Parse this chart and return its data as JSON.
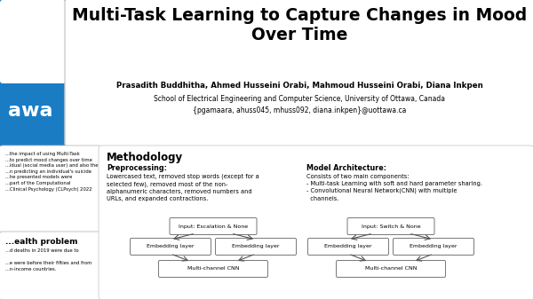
{
  "bg_color": "#1a7dc4",
  "title": "Multi-Task Learning to Capture Changes in Mood\nOver Time",
  "authors": "Prasadith Buddhitha, Ahmed Husseini Orabi, Mahmoud Husseini Orabi, Diana Inkpen",
  "affiliation": "School of Electrical Engineering and Computer Science, University of Ottawa, Canada",
  "email": "{pgamaara, ahuss045, mhuss092, diana.inkpen}@uottawa.ca",
  "methodology_title": "Methodology",
  "preprocessing_title": "Preprocessing:",
  "preprocessing_text": "Lowercased text, removed stop words (except for a\nselected few), removed most of the non-\nalphanumeric characters, removed numbers and\nURLs, and expanded contractions.",
  "model_arch_title": "Model Architecture:",
  "model_arch_text": "Consists of two main components:\n- Multi-task Learning with soft and hard parameter sharing.\n- Convolutional Neural Network(CNN) with multiple\n  channels.",
  "left_text1": "...the impact of using Multi-Task\n...to predict mood changes over time\n...idual (social media user) and also the\n...n predicting an individual's suicide\n...he presented models were\n...part of the Computational\n...Clinical Psychology (CLPsych) 2022",
  "left_text2_title": "...ealth problem",
  "left_text2": "...d deaths in 2019 were due to\n\n...e were before their fifties and from\n...n-income countries.",
  "awa_text": "awa",
  "node1_label": "Input: Escalation & None",
  "node2_label": "Input: Switch & None",
  "emb1_label": "Embedding layer",
  "emb2_label": "Embedding layer",
  "emb3_label": "Embedding layer",
  "emb4_label": "Embedding layer",
  "cnn1_label": "Multi-channel CNN",
  "cnn2_label": "Multi-channel CNN"
}
